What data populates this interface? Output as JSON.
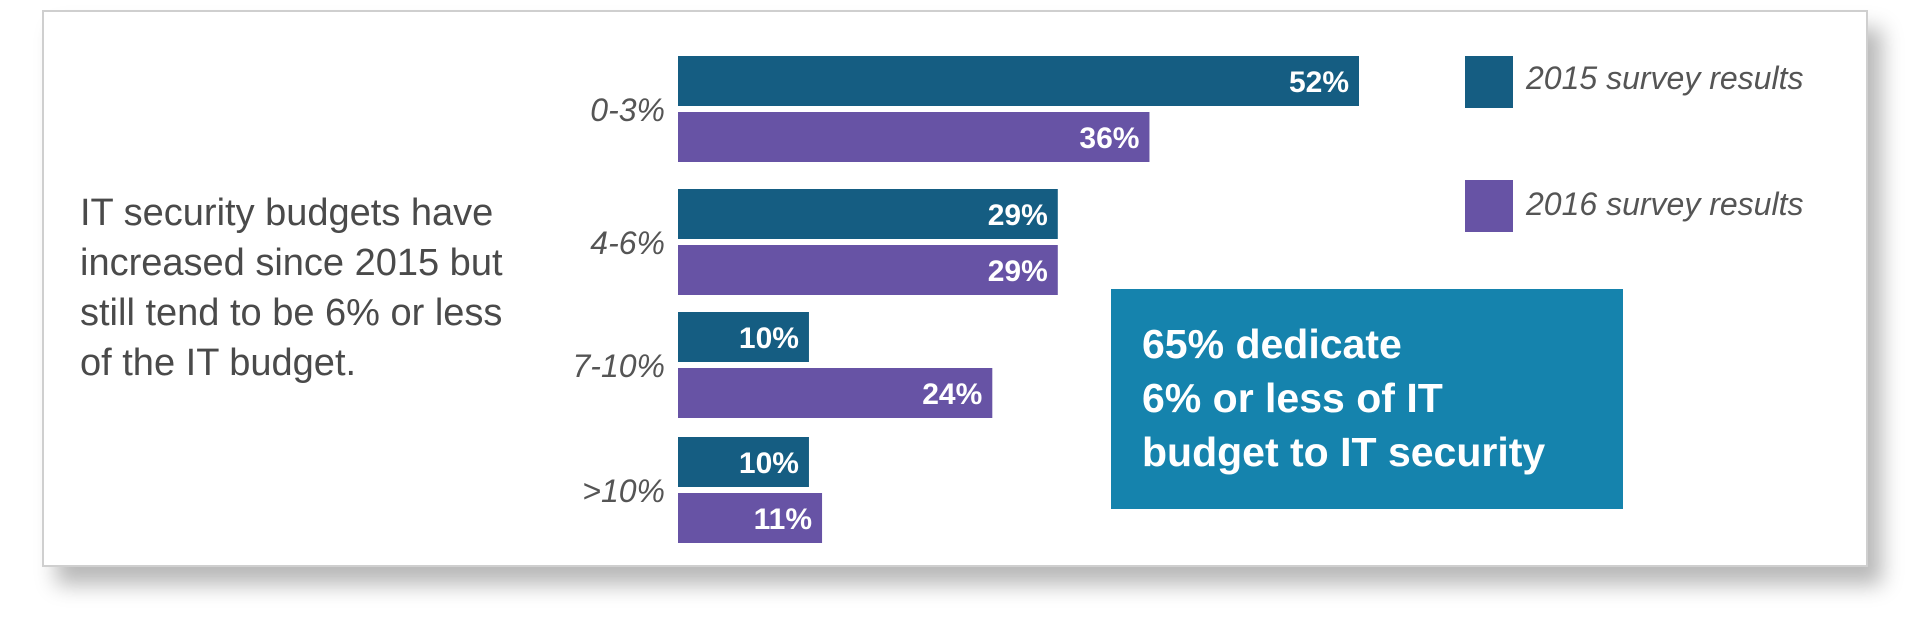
{
  "summary_lines": [
    "IT security budgets have",
    "increased since 2015 but",
    "still tend to be 6% or less",
    "of the IT budget."
  ],
  "callout": {
    "lines": [
      "65% dedicate",
      "6% or less of IT",
      "budget to IT security"
    ],
    "color": "#1583ad"
  },
  "chart_data": {
    "type": "bar",
    "orientation": "horizontal",
    "categories": [
      "0-3%",
      "4-6%",
      "7-10%",
      ">10%"
    ],
    "series": [
      {
        "name": "2015 survey results",
        "values": [
          52,
          29,
          10,
          10
        ],
        "labels": [
          "52%",
          "29%",
          "10%",
          "10%"
        ],
        "color": "#155d82"
      },
      {
        "name": "2016 survey results",
        "values": [
          36,
          29,
          24,
          11
        ],
        "labels": [
          "36%",
          "29%",
          "24%",
          "11%"
        ],
        "color": "#6753a5"
      }
    ],
    "xlim": [
      0,
      52
    ],
    "grid": false,
    "legend_position": "top-right"
  }
}
